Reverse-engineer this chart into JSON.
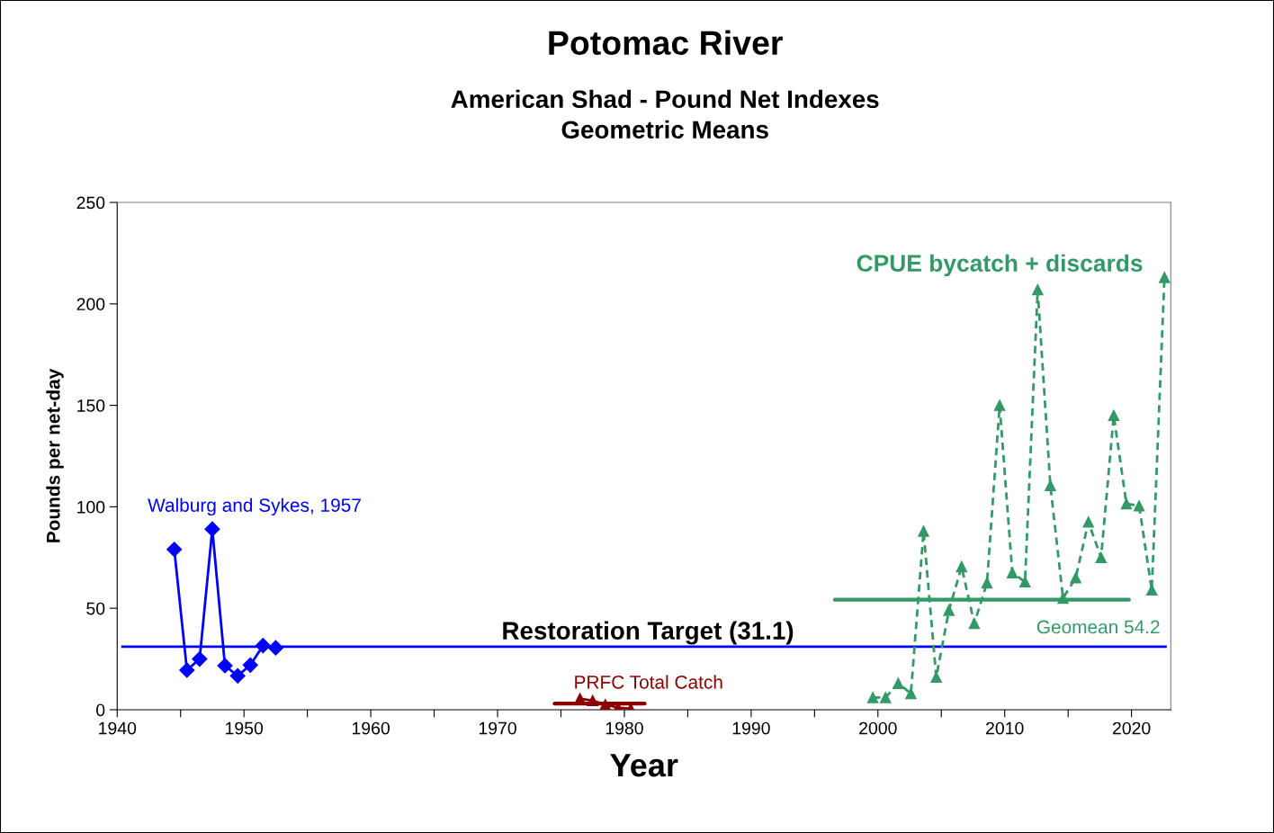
{
  "chart_data": {
    "type": "line",
    "title": "Potomac River",
    "subtitle": "American Shad - Pound Net Indexes\nGeometric Means",
    "xlabel": "Year",
    "ylabel": "Pounds per net-day",
    "xlim": [
      1940,
      2023.1
    ],
    "xticks": [
      1940,
      {
        "value": 1945,
        "label": null
      },
      1950,
      {
        "value": 1955,
        "label": null
      },
      1960,
      {
        "value": 1965,
        "label": null
      },
      1970,
      {
        "value": 1975,
        "label": null
      },
      1980,
      {
        "value": 1985,
        "label": null
      },
      1990,
      {
        "value": 1995,
        "label": null
      },
      2000,
      {
        "value": 2005,
        "label": null
      },
      2010,
      {
        "value": 2015,
        "label": null
      },
      2020
    ],
    "ylim": [
      0,
      250
    ],
    "yticks": [
      0,
      50,
      100,
      150,
      200,
      250
    ],
    "grid": false,
    "legend": false,
    "series": [
      {
        "name": "Walburg and Sykes, 1957",
        "color": "#0000ff",
        "marker": "diamond",
        "line_style": "solid",
        "x": [
          1944.5,
          1945.5,
          1946.5,
          1947.5,
          1948.5,
          1949.5,
          1950.5,
          1951.5,
          1952.5
        ],
        "values": [
          79,
          19.5,
          25,
          89,
          21.7,
          16.7,
          22,
          31.6,
          30.5
        ]
      },
      {
        "name": "PRFC Total Catch",
        "color": "#8b0000",
        "marker": "triangle",
        "line_style": "solid",
        "x": [
          1976.5,
          1977.5,
          1978.5,
          1979.5,
          1980.5
        ],
        "values": [
          5.5,
          4.5,
          2.5,
          1,
          0.5
        ]
      },
      {
        "color": "#8b0000",
        "marker": "none",
        "line_style": "solid",
        "x": [
          1974.5,
          1981.6
        ],
        "values": [
          3,
          3
        ]
      },
      {
        "name": "CPUE bycatch + discards",
        "color": "#339966",
        "marker": "triangle",
        "line_style": "dashed",
        "x": [
          1999.6,
          2000.6,
          2001.6,
          2002.6,
          2003.6,
          2004.6,
          2005.6,
          2006.6,
          2007.6,
          2008.6,
          2009.6,
          2010.6,
          2011.6,
          2012.6,
          2013.6,
          2014.6,
          2015.6,
          2016.6,
          2017.6,
          2018.6,
          2019.6,
          2020.6,
          2021.6,
          2022.6
        ],
        "values": [
          6,
          6,
          13,
          8,
          88,
          16,
          49,
          70.5,
          42.5,
          62.5,
          150,
          67.5,
          63,
          207,
          110.5,
          55,
          65,
          92.5,
          75,
          145,
          101.5,
          100.5,
          59,
          213
        ]
      },
      {
        "color": "#339966",
        "marker": "none",
        "line_style": "solid",
        "x": [
          1996.6,
          2019.8
        ],
        "values": [
          54.2,
          54.2
        ]
      }
    ],
    "ref_lines": [
      {
        "axis": "y",
        "value": 31.1,
        "label": "Restoration Target (31.1)",
        "color": "#0000ff"
      }
    ],
    "annotations": [
      "Geomean 54.2"
    ]
  }
}
